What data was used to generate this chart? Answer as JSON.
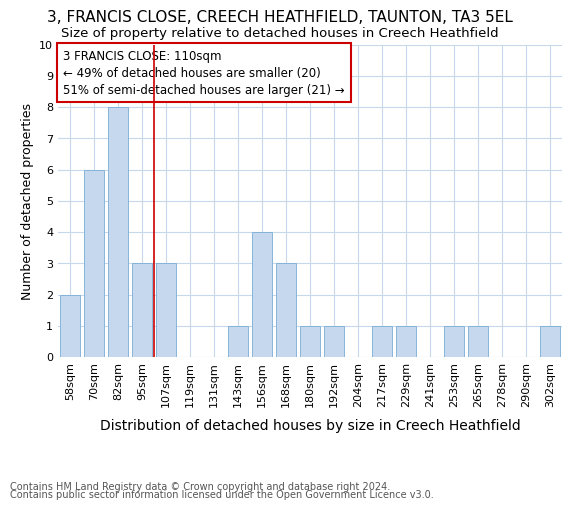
{
  "title_line1": "3, FRANCIS CLOSE, CREECH HEATHFIELD, TAUNTON, TA3 5EL",
  "title_line2": "Size of property relative to detached houses in Creech Heathfield",
  "xlabel": "Distribution of detached houses by size in Creech Heathfield",
  "ylabel": "Number of detached properties",
  "categories": [
    "58sqm",
    "70sqm",
    "82sqm",
    "95sqm",
    "107sqm",
    "119sqm",
    "131sqm",
    "143sqm",
    "156sqm",
    "168sqm",
    "180sqm",
    "192sqm",
    "204sqm",
    "217sqm",
    "229sqm",
    "241sqm",
    "253sqm",
    "265sqm",
    "278sqm",
    "290sqm",
    "302sqm"
  ],
  "values": [
    2,
    6,
    8,
    3,
    3,
    0,
    0,
    1,
    4,
    3,
    1,
    1,
    0,
    1,
    1,
    0,
    1,
    1,
    0,
    0,
    1
  ],
  "bar_color": "#c5d8ee",
  "bar_edge_color": "#7aadd4",
  "vline_x": 3.5,
  "vline_color": "#cc0000",
  "annotation_text": "3 FRANCIS CLOSE: 110sqm\n← 49% of detached houses are smaller (20)\n51% of semi-detached houses are larger (21) →",
  "annotation_box_color": "#ffffff",
  "annotation_box_edge_color": "#cc0000",
  "ylim": [
    0,
    10
  ],
  "yticks": [
    0,
    1,
    2,
    3,
    4,
    5,
    6,
    7,
    8,
    9,
    10
  ],
  "grid_color": "#c8d8ec",
  "background_color": "#ffffff",
  "footnote_line1": "Contains HM Land Registry data © Crown copyright and database right 2024.",
  "footnote_line2": "Contains public sector information licensed under the Open Government Licence v3.0.",
  "title_fontsize": 11,
  "subtitle_fontsize": 9.5,
  "xlabel_fontsize": 10,
  "ylabel_fontsize": 9,
  "tick_fontsize": 8,
  "annotation_fontsize": 8.5,
  "footnote_fontsize": 7
}
